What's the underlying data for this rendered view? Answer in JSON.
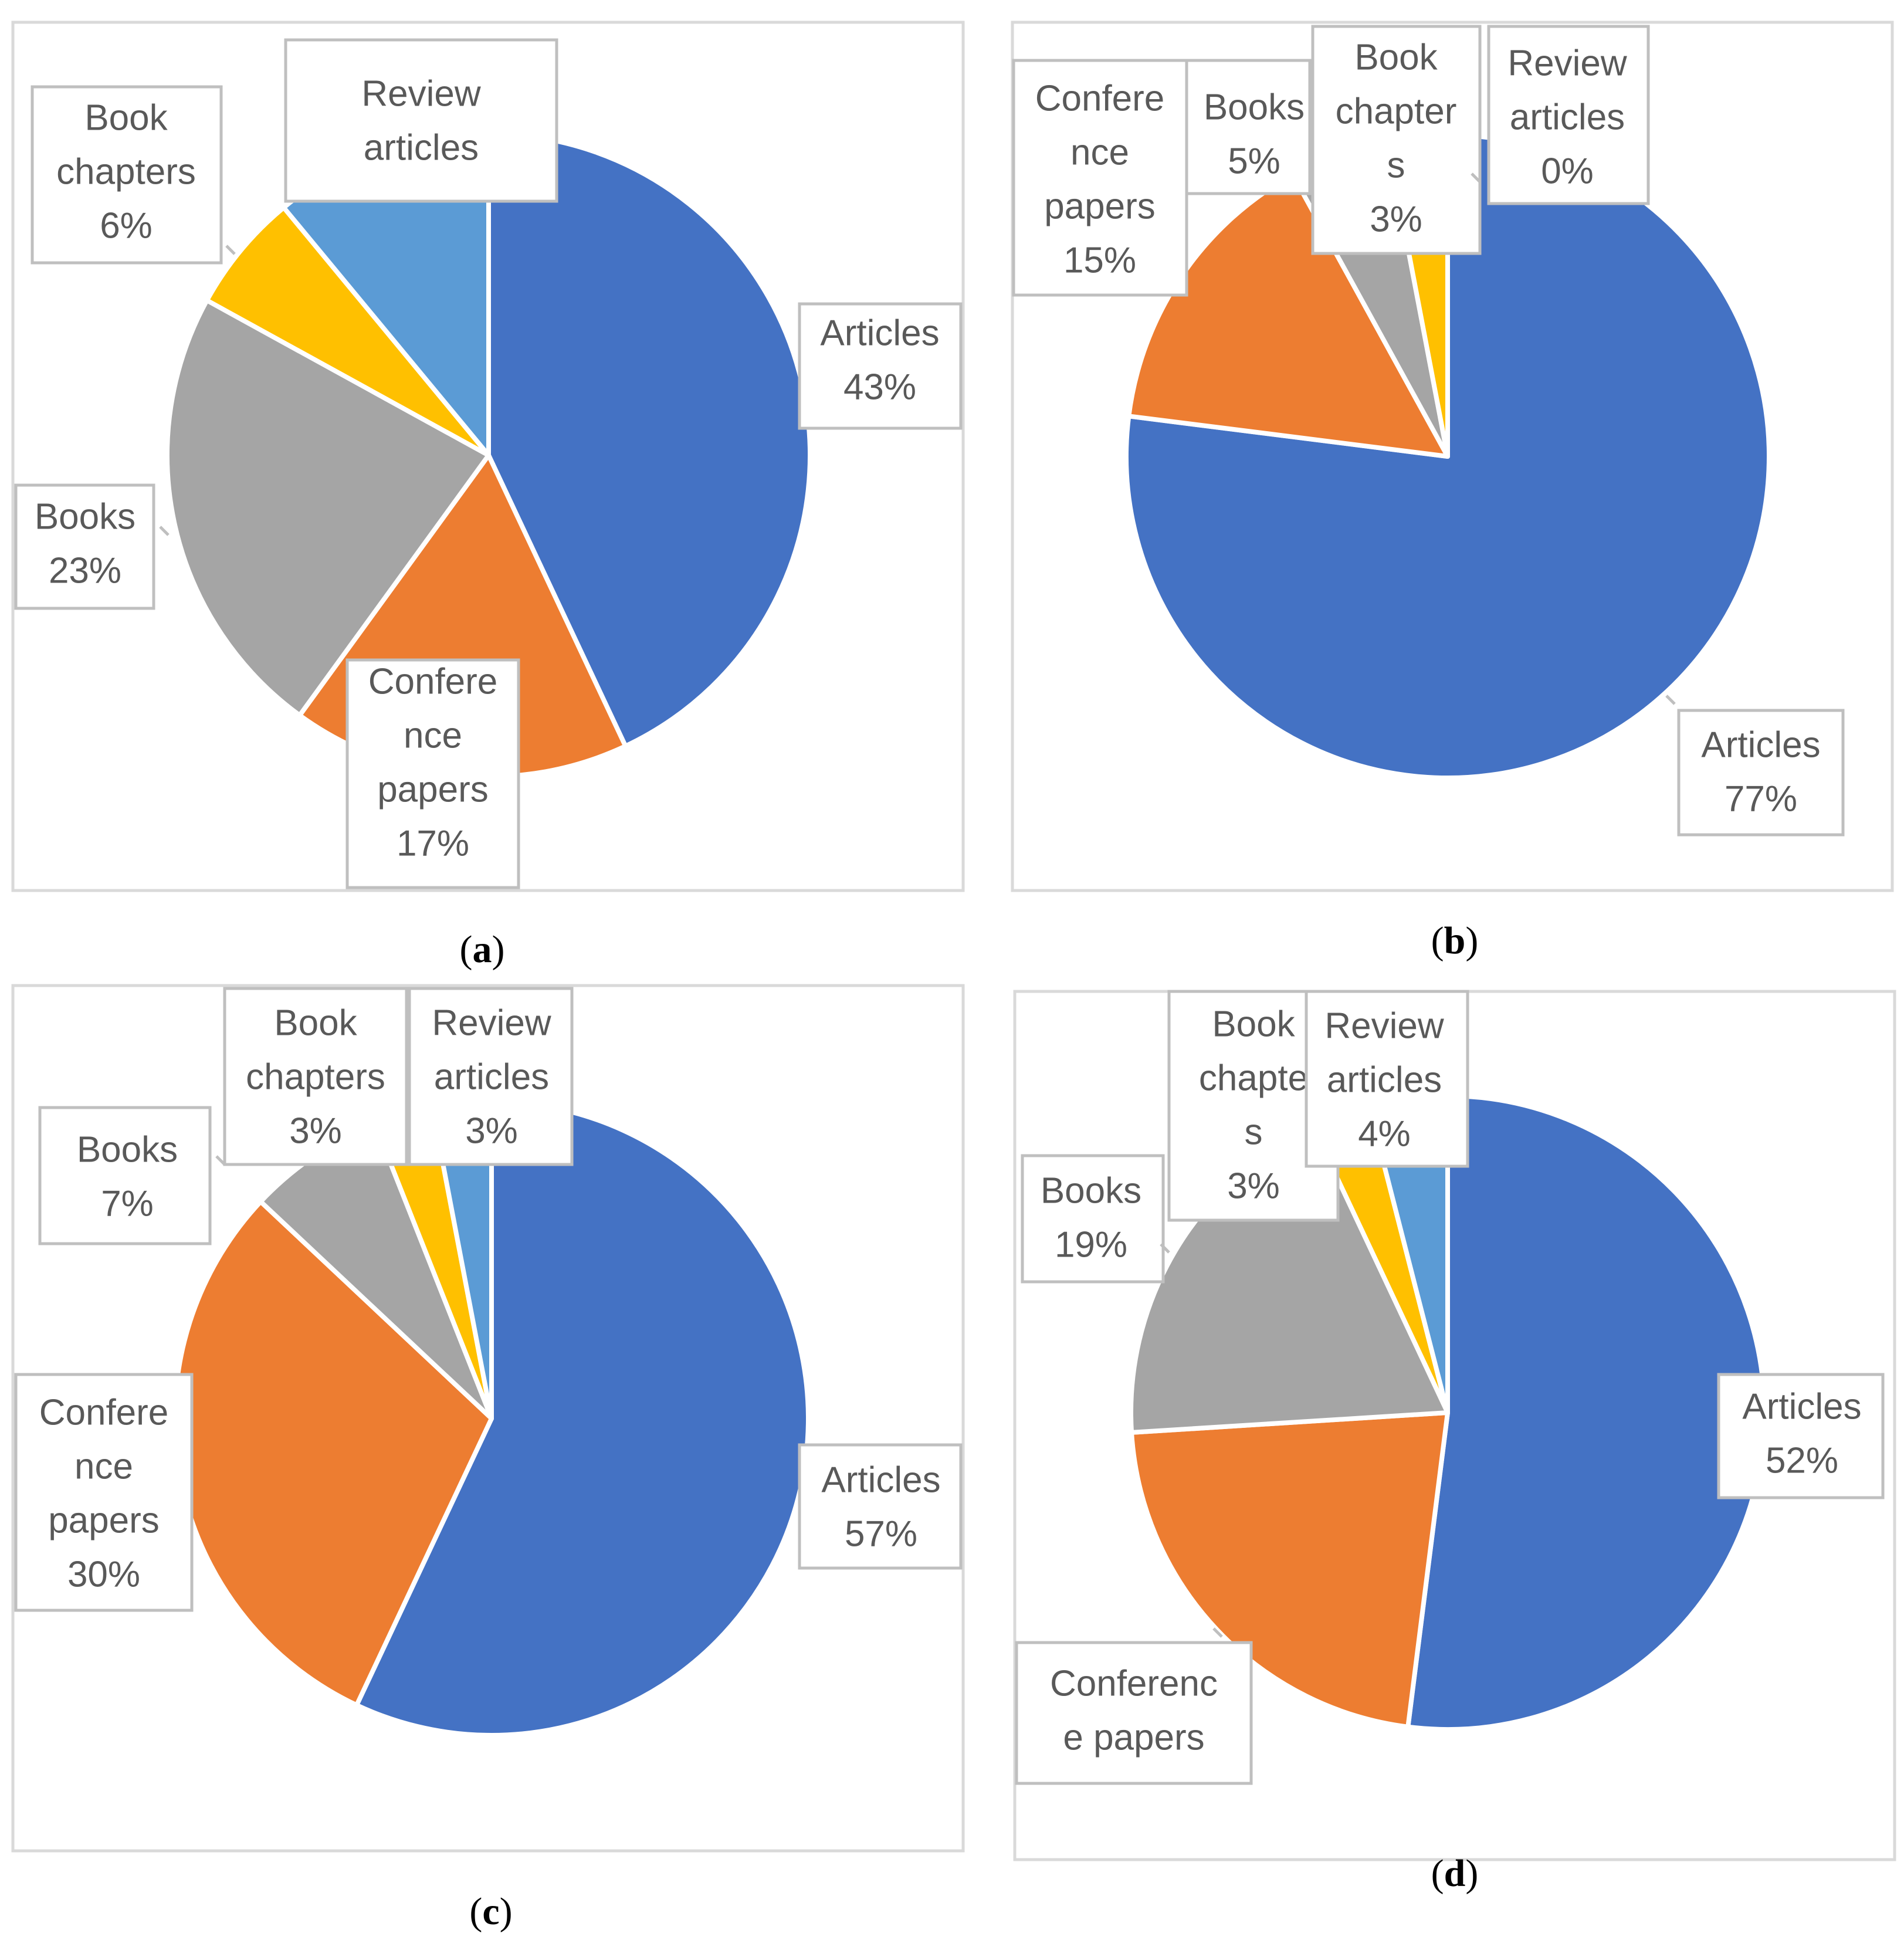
{
  "figure": {
    "colors": {
      "articles": "#4472C4",
      "conference_papers": "#ED7D31",
      "books": "#A5A5A5",
      "book_chapters": "#FFC000",
      "review_articles": "#5B9BD5",
      "label_text": "#595959",
      "label_border": "#BFBFBF",
      "panel_border": "#D9D9D9"
    }
  },
  "chart_data": [
    {
      "type": "pie",
      "panel": "a",
      "caption_letter": "a",
      "slices": [
        {
          "key": "articles",
          "name": "Articles",
          "value": 43,
          "label_lines": [
            "Articles",
            "43%"
          ]
        },
        {
          "key": "conference_papers",
          "name": "Conference papers",
          "value": 17,
          "label_lines": [
            "Confere",
            "nce",
            "papers",
            "17%"
          ]
        },
        {
          "key": "books",
          "name": "Books",
          "value": 23,
          "label_lines": [
            "Books",
            "23%"
          ]
        },
        {
          "key": "book_chapters",
          "name": "Book chapters",
          "value": 6,
          "label_lines": [
            "Book",
            "chapters",
            "6%"
          ]
        },
        {
          "key": "review_articles",
          "name": "Review articles",
          "value": 11,
          "label_lines": [
            "Review",
            "articles"
          ]
        }
      ]
    },
    {
      "type": "pie",
      "panel": "b",
      "caption_letter": "b",
      "slices": [
        {
          "key": "articles",
          "name": "Articles",
          "value": 77,
          "label_lines": [
            "Articles",
            "77%"
          ]
        },
        {
          "key": "conference_papers",
          "name": "Conference papers",
          "value": 15,
          "label_lines": [
            "Confere",
            "nce",
            "papers",
            "15%"
          ]
        },
        {
          "key": "books",
          "name": "Books",
          "value": 5,
          "label_lines": [
            "Books",
            "5%"
          ]
        },
        {
          "key": "book_chapters",
          "name": "Book chapters",
          "value": 3,
          "label_lines": [
            "Book",
            "chapter",
            "s",
            "3%"
          ]
        },
        {
          "key": "review_articles",
          "name": "Review articles",
          "value": 0,
          "label_lines": [
            "Review",
            "articles",
            "0%"
          ]
        }
      ]
    },
    {
      "type": "pie",
      "panel": "c",
      "caption_letter": "c",
      "slices": [
        {
          "key": "articles",
          "name": "Articles",
          "value": 57,
          "label_lines": [
            "Articles",
            "57%"
          ]
        },
        {
          "key": "conference_papers",
          "name": "Conference papers",
          "value": 30,
          "label_lines": [
            "Confere",
            "nce",
            "papers",
            "30%"
          ]
        },
        {
          "key": "books",
          "name": "Books",
          "value": 7,
          "label_lines": [
            "Books",
            "7%"
          ]
        },
        {
          "key": "book_chapters",
          "name": "Book chapters",
          "value": 3,
          "label_lines": [
            "Book",
            "chapters",
            "3%"
          ]
        },
        {
          "key": "review_articles",
          "name": "Review articles",
          "value": 3,
          "label_lines": [
            "Review",
            "articles",
            "3%"
          ]
        }
      ]
    },
    {
      "type": "pie",
      "panel": "d",
      "caption_letter": "d",
      "slices": [
        {
          "key": "articles",
          "name": "Articles",
          "value": 52,
          "label_lines": [
            "Articles",
            "52%"
          ]
        },
        {
          "key": "conference_papers",
          "name": "Conference papers",
          "value": 22,
          "label_lines": [
            "Conferenc",
            "e papers"
          ]
        },
        {
          "key": "books",
          "name": "Books",
          "value": 19,
          "label_lines": [
            "Books",
            "19%"
          ]
        },
        {
          "key": "book_chapters",
          "name": "Book chapters",
          "value": 3,
          "label_lines": [
            "Book",
            "chapte",
            "s",
            "3%"
          ]
        },
        {
          "key": "review_articles",
          "name": "Review articles",
          "value": 4,
          "label_lines": [
            "Review",
            "articles",
            "4%"
          ]
        }
      ]
    }
  ]
}
